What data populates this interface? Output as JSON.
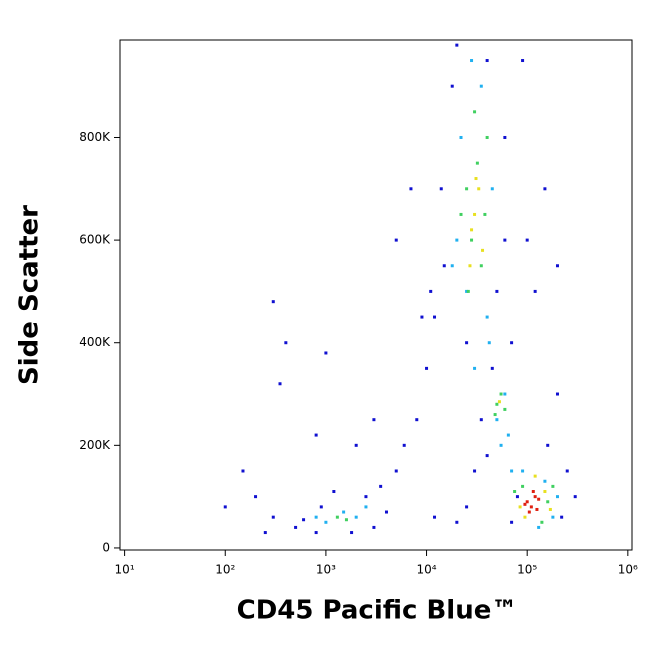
{
  "chart_data": {
    "type": "scatter",
    "x_label": "CD45 Pacific Blue™",
    "y_label": "Side Scatter",
    "xscale": "log",
    "xlim": [
      9,
      1100000
    ],
    "ylim": [
      -4000,
      990000
    ],
    "xticks": [
      {
        "value": 10,
        "label": "10¹"
      },
      {
        "value": 100,
        "label": "10²"
      },
      {
        "value": 1000,
        "label": "10³"
      },
      {
        "value": 10000,
        "label": "10⁴"
      },
      {
        "value": 100000,
        "label": "10⁵"
      },
      {
        "value": 1000000,
        "label": "10⁶"
      }
    ],
    "yticks": [
      0,
      {
        "value": 200000,
        "label": "200K"
      },
      {
        "value": 400000,
        "label": "400K"
      },
      {
        "value": 600000,
        "label": "600K"
      },
      {
        "value": 800000,
        "label": "800K"
      }
    ],
    "series": [
      {
        "color": "#1010d0",
        "x": [
          500,
          600,
          800,
          900,
          2500,
          3500,
          4000,
          300,
          1200,
          5000,
          6000,
          8000,
          10000,
          12000,
          15000,
          14000,
          18000,
          20000,
          40000,
          60000,
          50000,
          70000,
          100000,
          150000,
          200000,
          250000,
          300000,
          30000,
          25000,
          20000,
          12000,
          150,
          200,
          300,
          400,
          350,
          1000,
          800,
          3000,
          5000,
          7000,
          90000,
          120000,
          200000,
          160000,
          80000,
          40000,
          25000,
          35000,
          60000,
          100,
          250,
          1800,
          3000,
          2000,
          9000,
          11000,
          45000,
          70000,
          220000
        ],
        "values": [
          40000,
          55000,
          30000,
          80000,
          100000,
          120000,
          70000,
          60000,
          110000,
          150000,
          200000,
          250000,
          350000,
          450000,
          550000,
          700000,
          900000,
          980000,
          950000,
          800000,
          500000,
          400000,
          600000,
          700000,
          300000,
          150000,
          100000,
          150000,
          80000,
          50000,
          60000,
          150000,
          100000,
          480000,
          400000,
          320000,
          380000,
          220000,
          250000,
          600000,
          700000,
          950000,
          500000,
          550000,
          200000,
          100000,
          180000,
          400000,
          250000,
          600000,
          80000,
          30000,
          30000,
          40000,
          200000,
          450000,
          500000,
          350000,
          50000,
          60000
        ]
      },
      {
        "color": "#20b0f0",
        "x": [
          1000,
          1500,
          2000,
          800,
          2500,
          22000,
          25000,
          35000,
          40000,
          30000,
          45000,
          50000,
          60000,
          65000,
          70000,
          90000,
          150000,
          180000,
          20000,
          28000,
          18000,
          42000,
          55000,
          130000,
          200000
        ],
        "values": [
          50000,
          70000,
          60000,
          60000,
          80000,
          800000,
          500000,
          900000,
          450000,
          350000,
          700000,
          250000,
          300000,
          220000,
          150000,
          150000,
          130000,
          60000,
          600000,
          950000,
          550000,
          400000,
          200000,
          40000,
          100000
        ]
      },
      {
        "color": "#40d060",
        "x": [
          1300,
          1600,
          25000,
          28000,
          32000,
          35000,
          30000,
          38000,
          26000,
          50000,
          55000,
          48000,
          90000,
          160000,
          140000,
          22000,
          40000,
          60000,
          75000,
          180000
        ],
        "values": [
          60000,
          55000,
          700000,
          600000,
          750000,
          550000,
          850000,
          650000,
          500000,
          280000,
          300000,
          260000,
          120000,
          90000,
          50000,
          650000,
          800000,
          270000,
          110000,
          120000
        ]
      },
      {
        "color": "#e8e020",
        "x": [
          30000,
          33000,
          28000,
          36000,
          31000,
          53000,
          85000,
          150000,
          170000,
          95000,
          27000,
          120000
        ],
        "values": [
          650000,
          700000,
          620000,
          580000,
          720000,
          285000,
          80000,
          110000,
          75000,
          60000,
          550000,
          140000
        ]
      },
      {
        "color": "#e02010",
        "x": [
          100000,
          110000,
          120000,
          105000,
          130000,
          115000,
          95000,
          125000
        ],
        "values": [
          90000,
          80000,
          100000,
          70000,
          95000,
          110000,
          85000,
          75000
        ]
      }
    ]
  }
}
